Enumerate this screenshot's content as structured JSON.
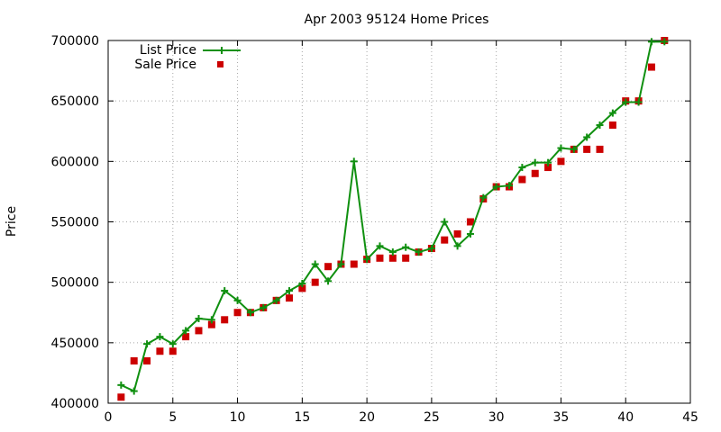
{
  "chart_data": {
    "type": "line",
    "title": "Apr 2003 95124 Home Prices",
    "xlabel": "",
    "ylabel": "Price",
    "xlim": [
      0,
      45
    ],
    "ylim": [
      400000,
      700000
    ],
    "x_ticks": [
      0,
      5,
      10,
      15,
      20,
      25,
      30,
      35,
      40,
      45
    ],
    "y_ticks": [
      400000,
      450000,
      500000,
      550000,
      600000,
      650000,
      700000
    ],
    "grid": true,
    "legend_position": "top-left",
    "series": [
      {
        "name": "List Price",
        "type": "line",
        "marker": "plus",
        "color": "#109010",
        "x": [
          1,
          2,
          3,
          4,
          5,
          6,
          7,
          8,
          9,
          10,
          11,
          12,
          13,
          14,
          15,
          16,
          17,
          18,
          19,
          20,
          21,
          22,
          23,
          24,
          25,
          26,
          27,
          28,
          29,
          30,
          31,
          32,
          33,
          34,
          35,
          36,
          37,
          38,
          39,
          40,
          41,
          42,
          43
        ],
        "values": [
          415000,
          410000,
          449000,
          455000,
          449000,
          460000,
          470000,
          469000,
          493000,
          485000,
          475000,
          479000,
          485000,
          493000,
          499000,
          515000,
          501000,
          515000,
          600000,
          519000,
          530000,
          525000,
          529000,
          525000,
          528000,
          550000,
          530000,
          540000,
          570000,
          579000,
          580000,
          595000,
          599000,
          599000,
          611000,
          610000,
          620000,
          630000,
          640000,
          649000,
          649000,
          699000,
          699000
        ]
      },
      {
        "name": "Sale Price",
        "type": "scatter",
        "marker": "square",
        "color": "#cc0000",
        "x": [
          1,
          2,
          3,
          4,
          5,
          6,
          7,
          8,
          9,
          10,
          11,
          12,
          13,
          14,
          15,
          16,
          17,
          18,
          19,
          20,
          21,
          22,
          23,
          24,
          25,
          26,
          27,
          28,
          29,
          30,
          31,
          32,
          33,
          34,
          35,
          36,
          37,
          38,
          39,
          40,
          41,
          42,
          43
        ],
        "values": [
          405000,
          435000,
          435000,
          443000,
          443000,
          455000,
          460000,
          465000,
          469000,
          475000,
          475000,
          479000,
          485000,
          487000,
          495000,
          500000,
          513000,
          515000,
          515000,
          519000,
          520000,
          520000,
          520000,
          525000,
          528000,
          535000,
          540000,
          550000,
          569000,
          579000,
          579000,
          585000,
          590000,
          595000,
          600000,
          610000,
          610000,
          610000,
          630000,
          650000,
          650000,
          678000,
          700000
        ]
      }
    ]
  }
}
